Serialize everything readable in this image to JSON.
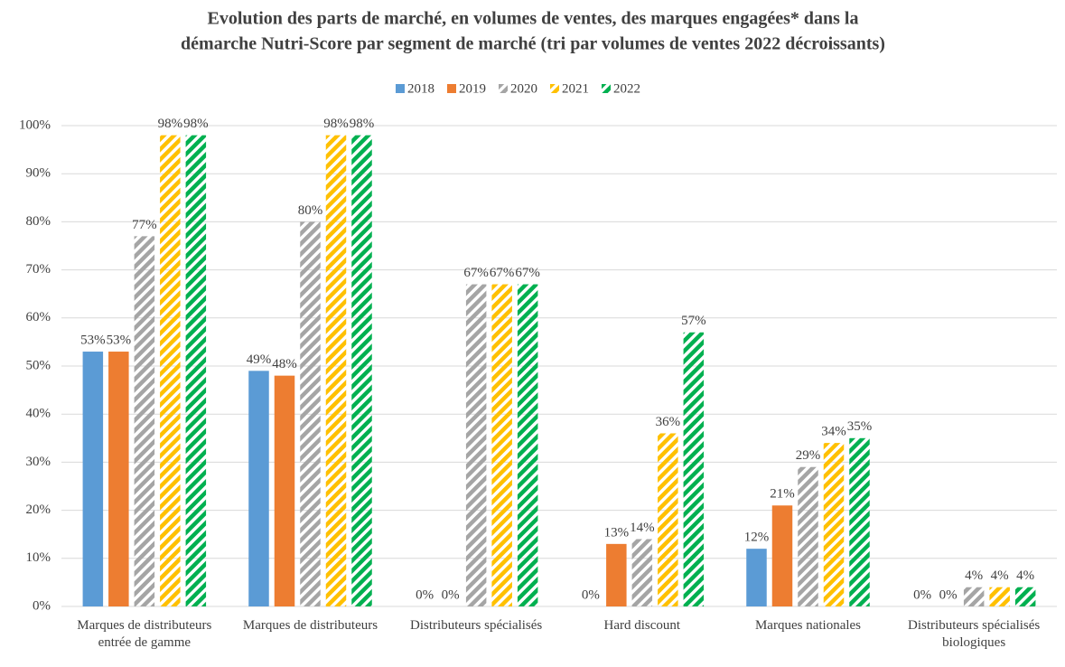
{
  "chart_data": {
    "type": "bar",
    "title": [
      "Evolution des parts de marché, en volumes de ventes, des marques engagées* dans la",
      "démarche Nutri-Score par segment de marché (tri par volumes de ventes 2022 décroissants)"
    ],
    "categories": [
      "Marques de distributeurs entrée de gamme",
      "Marques de distributeurs",
      "Distributeurs spécialisés",
      "Hard discount",
      "Marques nationales",
      "Distributeurs spécialisés biologiques"
    ],
    "series": [
      {
        "name": "2018",
        "color": "#5b9bd5",
        "hatched": false,
        "values": [
          53,
          49,
          0,
          0,
          12,
          0
        ],
        "value_labels": [
          "53%",
          "49%",
          "0%",
          "0%",
          "12%",
          "0%"
        ]
      },
      {
        "name": "2019",
        "color": "#ed7d31",
        "hatched": false,
        "values": [
          53,
          48,
          0,
          13,
          21,
          0
        ],
        "value_labels": [
          "53%",
          "48%",
          "0%",
          "13%",
          "21%",
          "0%"
        ]
      },
      {
        "name": "2020",
        "color": "#a5a5a5",
        "hatched": true,
        "values": [
          77,
          80,
          67,
          14,
          29,
          4
        ],
        "value_labels": [
          "77%",
          "80%",
          "67%",
          "14%",
          "29%",
          "4%"
        ]
      },
      {
        "name": "2021",
        "color": "#ffc000",
        "hatched": true,
        "values": [
          98,
          98,
          67,
          36,
          34,
          4
        ],
        "value_labels": [
          "98%",
          "98%",
          "67%",
          "36%",
          "34%",
          "4%"
        ]
      },
      {
        "name": "2022",
        "color": "#00b050",
        "hatched": true,
        "values": [
          98,
          98,
          67,
          57,
          35,
          4
        ],
        "value_labels": [
          "98%",
          "98%",
          "67%",
          "57%",
          "35%",
          "4%"
        ]
      }
    ],
    "ylim": [
      0,
      100
    ],
    "yticks": [
      {
        "value": 0,
        "label": "0%"
      },
      {
        "value": 10,
        "label": "10%"
      },
      {
        "value": 20,
        "label": "20%"
      },
      {
        "value": 30,
        "label": "30%"
      },
      {
        "value": 40,
        "label": "40%"
      },
      {
        "value": 50,
        "label": "50%"
      },
      {
        "value": 60,
        "label": "60%"
      },
      {
        "value": 70,
        "label": "70%"
      },
      {
        "value": 80,
        "label": "80%"
      },
      {
        "value": 90,
        "label": "90%"
      },
      {
        "value": 100,
        "label": "100%"
      }
    ],
    "grid": true,
    "legend": "top"
  }
}
